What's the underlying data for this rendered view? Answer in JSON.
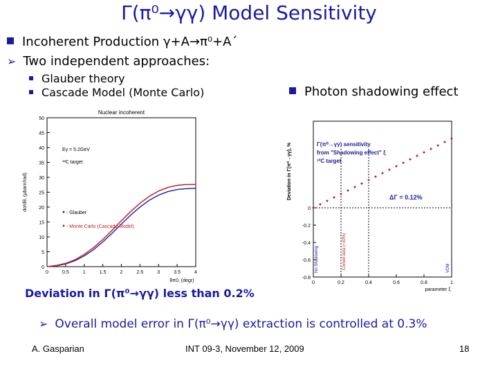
{
  "slide": {
    "title": "Γ(π⁰→γγ) Model Sensitivity",
    "bullet1": "Incoherent Production  γ+A→π⁰+A´",
    "bullet2": "Two independent approaches:",
    "sub1": "Glauber theory",
    "sub2": "Cascade Model (Monte Carlo)",
    "right_bullet": "Photon shadowing effect",
    "deviation_text": "Deviation in Γ(π⁰→γγ) less than 0.2%",
    "overall_text": "Overall model error in Γ(π⁰→γγ) extraction is controlled at 0.3%",
    "footer_left": "A. Gasparian",
    "footer_center": "INT 09-3, November 12, 2009",
    "footer_right": "18"
  },
  "chart_data": [
    {
      "type": "line",
      "title": "Nuclear incoherent",
      "xlabel": "θπ0, (degr)",
      "ylabel": "dσ/dθ, (μbarn/rad)",
      "xlim": [
        0,
        4
      ],
      "ylim": [
        0,
        50
      ],
      "x_ticks": [
        "0",
        "0.5",
        "1",
        "1.5",
        "2",
        "2.5",
        "3",
        "3.5",
        "4"
      ],
      "y_ticks": [
        "0",
        "5",
        "10",
        "15",
        "20",
        "25",
        "30",
        "35",
        "40",
        "45",
        "50"
      ],
      "annotations": [
        "Eγ = 5.2GeV",
        "¹²C target"
      ],
      "legend": [
        "- Glauber",
        "- Monte Carlo (Cascade Model)"
      ],
      "series": [
        {
          "name": "Glauber",
          "color": "#2a2ab0",
          "x": [
            0,
            0.25,
            0.5,
            0.75,
            1.0,
            1.25,
            1.5,
            1.75,
            2.0,
            2.25,
            2.5,
            2.75,
            3.0,
            3.25,
            3.5,
            3.75,
            4.0
          ],
          "y": [
            0,
            0.3,
            0.9,
            2.0,
            3.6,
            5.7,
            8.3,
            11.2,
            14.3,
            17.3,
            20.0,
            22.3,
            24.0,
            25.2,
            25.9,
            26.2,
            26.3
          ]
        },
        {
          "name": "Monte Carlo (Cascade Model)",
          "color": "#c02020",
          "x": [
            0,
            0.25,
            0.5,
            0.75,
            1.0,
            1.25,
            1.5,
            1.75,
            2.0,
            2.25,
            2.5,
            2.75,
            3.0,
            3.25,
            3.5,
            3.75,
            4.0
          ],
          "y": [
            0,
            0.4,
            1.1,
            2.3,
            4.1,
            6.4,
            9.1,
            12.2,
            15.4,
            18.5,
            21.3,
            23.6,
            25.4,
            26.6,
            27.3,
            27.6,
            27.6
          ]
        }
      ]
    },
    {
      "type": "line",
      "xlabel": "parameter ξ",
      "ylabel": "Deviation in Γ(π⁰→γγ), %",
      "xlim": [
        0,
        1
      ],
      "ylim": [
        -0.8,
        1.0
      ],
      "x_ticks": [
        "0",
        "0.2",
        "0.4",
        "0.6",
        "0.8",
        "1"
      ],
      "y_ticks": [
        "-0.8",
        "-0.6",
        "-0.4",
        "-0.2",
        "0"
      ],
      "annotations": [
        "Γ(π⁰→γγ) sensitivity",
        "from \"Shadowing effect\" ξ",
        "¹²C target",
        "ΔΓ = 0.12%",
        "Cornell data (≈30%)",
        "No Shadowing",
        "VDM"
      ],
      "series": [
        {
          "name": "",
          "color": "#c02020",
          "x": [
            0,
            0.05,
            0.1,
            0.15,
            0.2,
            0.25,
            0.3,
            0.35,
            0.4,
            0.45,
            0.5,
            0.55,
            0.6,
            0.65,
            0.7,
            0.75,
            0.8,
            0.85,
            0.9,
            0.95,
            1.0
          ],
          "y": [
            0,
            0.04,
            0.08,
            0.12,
            0.16,
            0.2,
            0.24,
            0.28,
            0.32,
            0.36,
            0.4,
            0.44,
            0.48,
            0.52,
            0.56,
            0.6,
            0.64,
            0.68,
            0.72,
            0.76,
            0.8
          ]
        }
      ]
    }
  ]
}
